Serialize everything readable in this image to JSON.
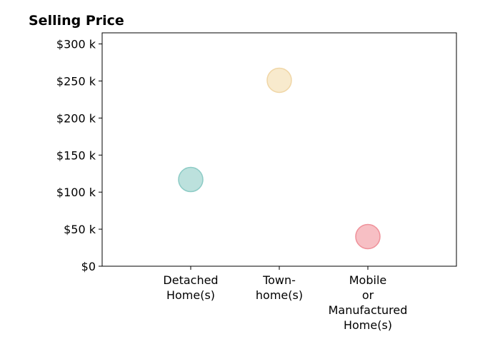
{
  "chart_data": {
    "type": "scatter",
    "title": "Selling Price",
    "xlabel": "",
    "ylabel": "",
    "categories": [
      [
        "Detached",
        "Home(s)"
      ],
      [
        "Town-",
        "home(s)"
      ],
      [
        "Mobile",
        "or",
        "Manufactured",
        "Home(s)"
      ]
    ],
    "values": [
      117000,
      251000,
      40000
    ],
    "point_colors": [
      "#9fd4cf",
      "#f5e1b8",
      "#f4a4ab"
    ],
    "point_edge_colors": [
      "#8ccbc5",
      "#f0d6a6",
      "#ef919a"
    ],
    "ylim": [
      0,
      315000
    ],
    "yticks": [
      {
        "value": 0,
        "label": "$0"
      },
      {
        "value": 50000,
        "label": "$50 k"
      },
      {
        "value": 100000,
        "label": "$100 k"
      },
      {
        "value": 150000,
        "label": "$150 k"
      },
      {
        "value": 200000,
        "label": "$200 k"
      },
      {
        "value": 250000,
        "label": "$250 k"
      },
      {
        "value": 300000,
        "label": "$300 k"
      }
    ],
    "grid": false,
    "legend": "none"
  }
}
